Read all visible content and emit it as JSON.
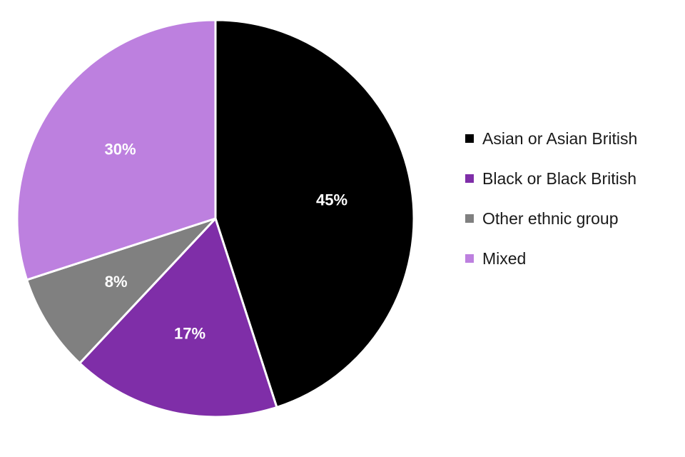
{
  "chart_data": {
    "type": "pie",
    "title": "",
    "categories": [
      "Asian or Asian British",
      "Black or Black British",
      "Other ethnic group",
      "Mixed"
    ],
    "values": [
      45,
      17,
      8,
      30
    ],
    "data_labels": [
      "45%",
      "17%",
      "8%",
      "30%"
    ],
    "colors": [
      "#000000",
      "#7f2ea8",
      "#808080",
      "#bd80df"
    ],
    "legend": {
      "position": "right",
      "entries": [
        "Asian or Asian British",
        "Black or Black British",
        "Other ethnic group",
        "Mixed"
      ]
    },
    "start_angle": "12 o'clock",
    "direction": "clockwise"
  }
}
